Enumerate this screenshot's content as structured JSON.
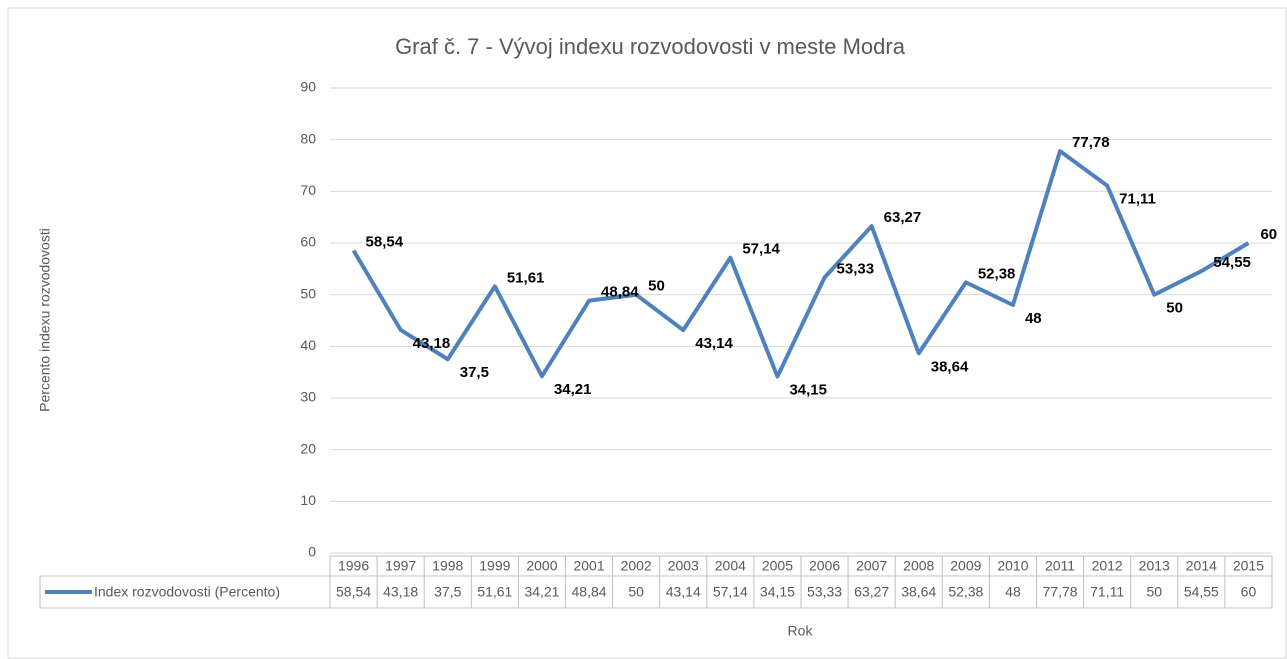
{
  "chart_data": {
    "type": "line",
    "title": "Graf č. 7 -  Vývoj indexu rozvodovosti v meste Modra",
    "ylabel": "Percento indexu rozvodovosti",
    "xlabel": "Rok",
    "categories": [
      "1996",
      "1997",
      "1998",
      "1999",
      "2000",
      "2001",
      "2002",
      "2003",
      "2004",
      "2005",
      "2006",
      "2007",
      "2008",
      "2009",
      "2010",
      "2011",
      "2012",
      "2013",
      "2014",
      "2015"
    ],
    "series": [
      {
        "name": "Index rozvodovosti (Percento)",
        "color": "#4f81bd",
        "values": [
          58.54,
          43.18,
          37.5,
          51.61,
          34.21,
          48.84,
          50,
          43.14,
          57.14,
          34.15,
          53.33,
          63.27,
          38.64,
          52.38,
          48,
          77.78,
          71.11,
          50,
          54.55,
          60
        ],
        "value_labels": [
          "58,54",
          "43,18",
          "37,5",
          "51,61",
          "34,21",
          "48,84",
          "50",
          "43,14",
          "57,14",
          "34,15",
          "53,33",
          "63,27",
          "38,64",
          "52,38",
          "48",
          "77,78",
          "71,11",
          "50",
          "54,55",
          "60"
        ]
      }
    ],
    "ylim": [
      0,
      90
    ],
    "yticks": [
      0,
      10,
      20,
      30,
      40,
      50,
      60,
      70,
      80,
      90
    ],
    "grid": true,
    "data_table": true
  }
}
